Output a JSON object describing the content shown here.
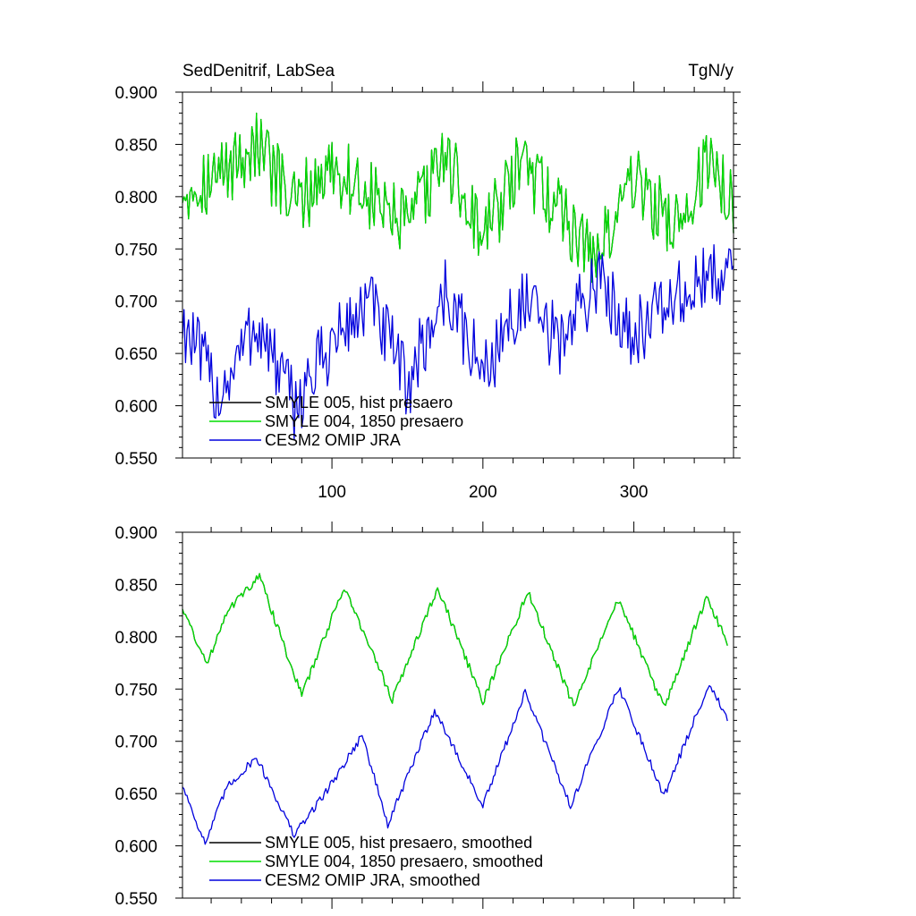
{
  "chart_data": [
    {
      "type": "line",
      "title": "SedDenitrif, LabSea",
      "units": "TgN/y",
      "xlim": [
        1,
        366
      ],
      "ylim": [
        0.55,
        0.9
      ],
      "x_ticks": [
        100,
        200,
        300
      ],
      "x_tick_labels": [
        "100",
        "200",
        "300"
      ],
      "y_ticks": [
        0.55,
        0.6,
        0.65,
        0.7,
        0.75,
        0.8,
        0.85,
        0.9
      ],
      "y_tick_labels": [
        "0.550",
        "0.600",
        "0.650",
        "0.700",
        "0.750",
        "0.800",
        "0.850",
        "0.900"
      ],
      "legend_position": "bottom-left",
      "series": [
        {
          "name": "SMYLE 005, hist presaero",
          "color": "#000000",
          "x": [
            1,
            25,
            50,
            75,
            100,
            125,
            150,
            175,
            200,
            225,
            250,
            275,
            300,
            325,
            350,
            366
          ],
          "values": [
            0.81,
            0.82,
            0.85,
            0.79,
            0.83,
            0.8,
            0.77,
            0.84,
            0.76,
            0.83,
            0.79,
            0.74,
            0.82,
            0.77,
            0.83,
            0.8
          ]
        },
        {
          "name": "SMYLE 004, 1850 presaero",
          "color": "#00dd00",
          "x": [
            1,
            25,
            50,
            75,
            100,
            125,
            150,
            175,
            200,
            225,
            250,
            275,
            300,
            325,
            350,
            366
          ],
          "values": [
            0.81,
            0.82,
            0.85,
            0.79,
            0.83,
            0.8,
            0.77,
            0.84,
            0.76,
            0.83,
            0.79,
            0.74,
            0.82,
            0.77,
            0.83,
            0.8
          ]
        },
        {
          "name": "CESM2 OMIP JRA",
          "color": "#0000dd",
          "x": [
            1,
            25,
            50,
            75,
            100,
            125,
            150,
            175,
            200,
            225,
            250,
            275,
            300,
            325,
            350,
            366
          ],
          "values": [
            0.68,
            0.61,
            0.68,
            0.6,
            0.66,
            0.7,
            0.62,
            0.71,
            0.63,
            0.7,
            0.66,
            0.72,
            0.67,
            0.7,
            0.72,
            0.74
          ]
        }
      ]
    },
    {
      "type": "line",
      "title": "",
      "units": "",
      "xlim": [
        1,
        366
      ],
      "ylim": [
        0.55,
        0.9
      ],
      "x_ticks": [
        100,
        200,
        300
      ],
      "x_tick_labels": [],
      "y_ticks": [
        0.55,
        0.6,
        0.65,
        0.7,
        0.75,
        0.8,
        0.85,
        0.9
      ],
      "y_tick_labels": [
        "0.550",
        "0.600",
        "0.650",
        "0.700",
        "0.750",
        "0.800",
        "0.850",
        "0.900"
      ],
      "legend_position": "bottom-left",
      "series": [
        {
          "name": "SMYLE 005, hist presaero, smoothed",
          "color": "#000000",
          "x": [
            1,
            17,
            30,
            52,
            80,
            108,
            140,
            170,
            200,
            230,
            260,
            290,
            320,
            348,
            362
          ],
          "values": [
            0.828,
            0.773,
            0.824,
            0.858,
            0.744,
            0.848,
            0.74,
            0.847,
            0.738,
            0.843,
            0.734,
            0.836,
            0.732,
            0.837,
            0.795
          ]
        },
        {
          "name": "SMYLE 004, 1850 presaero, smoothed",
          "color": "#00dd00",
          "x": [
            1,
            17,
            30,
            52,
            80,
            108,
            140,
            170,
            200,
            230,
            260,
            290,
            320,
            348,
            362
          ],
          "values": [
            0.828,
            0.773,
            0.824,
            0.858,
            0.744,
            0.848,
            0.74,
            0.847,
            0.738,
            0.843,
            0.734,
            0.836,
            0.732,
            0.837,
            0.795
          ]
        },
        {
          "name": "CESM2 OMIP JRA, smoothed",
          "color": "#0000dd",
          "x": [
            1,
            16,
            30,
            50,
            75,
            100,
            120,
            137,
            168,
            200,
            228,
            258,
            290,
            320,
            350,
            362
          ],
          "values": [
            0.658,
            0.602,
            0.655,
            0.685,
            0.61,
            0.66,
            0.706,
            0.62,
            0.73,
            0.638,
            0.747,
            0.638,
            0.752,
            0.648,
            0.756,
            0.72
          ]
        }
      ]
    }
  ]
}
